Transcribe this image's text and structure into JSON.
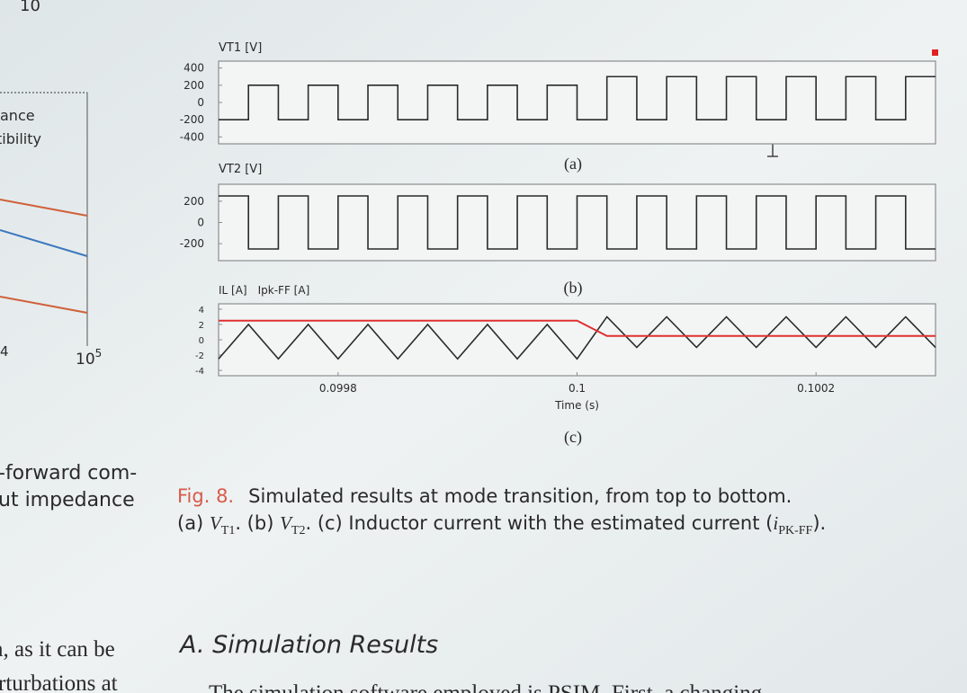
{
  "page": {
    "left_column": {
      "axis_fragment_top": "10",
      "legend_line_1": "ance",
      "legend_line_2": "tibility",
      "tick_fragment": "4",
      "tick_base": "10",
      "tick_exponent": "5",
      "text_lines": [
        "-forward com-",
        "ut impedance",
        "n, as it can be",
        "rturbations at"
      ]
    },
    "caption": {
      "label": "Fig. 8.",
      "line_1": "Simulated results at mode transition, from top to bottom.",
      "line_2": [
        "(a) ",
        "V",
        "T1",
        ". (b) ",
        "V",
        "T2",
        ". (c) Inductor current with the estimated current (",
        "i",
        "PK-FF",
        ")."
      ]
    },
    "section_heading": "A. Simulation Results",
    "body_text_fragment": "The simulation software employed is PSIM. First, a changing"
  },
  "chart_data": [
    {
      "type": "line",
      "title": "VT1 [V]",
      "label": "(a)",
      "xlim": [
        0.0997,
        0.1003
      ],
      "ylim": [
        -480,
        480
      ],
      "yticks": [
        400,
        200,
        0,
        -200,
        -400
      ],
      "series": [
        {
          "name": "VT1",
          "color": "#2a2a2a",
          "x": [
            0.0997,
            0.099725,
            0.099725,
            0.09975,
            0.09975,
            0.099775,
            0.099775,
            0.0998,
            0.0998,
            0.099825,
            0.099825,
            0.09985,
            0.09985,
            0.099875,
            0.099875,
            0.0999,
            0.0999,
            0.099925,
            0.099925,
            0.09995,
            0.09995,
            0.099975,
            0.099975,
            0.1,
            0.1,
            0.100025,
            0.100025,
            0.10005,
            0.10005,
            0.100075,
            0.100075,
            0.1001,
            0.1001,
            0.100125,
            0.100125,
            0.10015,
            0.10015,
            0.100175,
            0.100175,
            0.1002,
            0.1002,
            0.100225,
            0.100225,
            0.10025,
            0.10025,
            0.100275,
            0.100275,
            0.1003
          ],
          "values": [
            -200,
            -200,
            200,
            200,
            -200,
            -200,
            200,
            200,
            -200,
            -200,
            200,
            200,
            -200,
            -200,
            200,
            200,
            -200,
            -200,
            200,
            200,
            -200,
            -200,
            200,
            200,
            -200,
            -200,
            300,
            300,
            -200,
            -200,
            300,
            300,
            -200,
            -200,
            300,
            300,
            -200,
            -200,
            300,
            300,
            -200,
            -200,
            300,
            300,
            -200,
            -200,
            300,
            300
          ]
        }
      ]
    },
    {
      "type": "line",
      "title": "VT2 [V]",
      "label": "(b)",
      "xlim": [
        0.0997,
        0.1003
      ],
      "ylim": [
        -360,
        360
      ],
      "yticks": [
        200,
        0,
        -200
      ],
      "series": [
        {
          "name": "VT2",
          "color": "#2a2a2a",
          "x": [
            0.0997,
            0.099725,
            0.099725,
            0.09975,
            0.09975,
            0.099775,
            0.099775,
            0.0998,
            0.0998,
            0.099825,
            0.099825,
            0.09985,
            0.09985,
            0.099875,
            0.099875,
            0.0999,
            0.0999,
            0.099925,
            0.099925,
            0.09995,
            0.09995,
            0.099975,
            0.099975,
            0.1,
            0.1,
            0.100025,
            0.100025,
            0.10005,
            0.10005,
            0.100075,
            0.100075,
            0.1001,
            0.1001,
            0.100125,
            0.100125,
            0.10015,
            0.10015,
            0.100175,
            0.100175,
            0.1002,
            0.1002,
            0.100225,
            0.100225,
            0.10025,
            0.10025,
            0.100275,
            0.100275,
            0.1003
          ],
          "values": [
            250,
            250,
            -250,
            -250,
            250,
            250,
            -250,
            -250,
            250,
            250,
            -250,
            -250,
            250,
            250,
            -250,
            -250,
            250,
            250,
            -250,
            -250,
            250,
            250,
            -250,
            -250,
            250,
            250,
            -250,
            -250,
            250,
            250,
            -250,
            -250,
            250,
            250,
            -250,
            -250,
            250,
            250,
            -250,
            -250,
            250,
            250,
            -250,
            -250,
            250,
            250,
            -250,
            -250
          ]
        }
      ]
    },
    {
      "type": "line",
      "label": "(c)",
      "xlim": [
        0.0997,
        0.1003
      ],
      "ylim": [
        -4.7,
        4.7
      ],
      "yticks": [
        4,
        2,
        0,
        -2,
        -4
      ],
      "xticks": [
        0.0998,
        0.1,
        0.1002
      ],
      "xlabel": "Time (s)",
      "series": [
        {
          "name": "IL [A]",
          "color": "#2a2a2a",
          "x": [
            0.0997,
            0.099725,
            0.09975,
            0.099775,
            0.0998,
            0.099825,
            0.09985,
            0.099875,
            0.0999,
            0.099925,
            0.09995,
            0.099975,
            0.1,
            0.100025,
            0.10005,
            0.100075,
            0.1001,
            0.100125,
            0.10015,
            0.100175,
            0.1002,
            0.100225,
            0.10025,
            0.100275,
            0.1003
          ],
          "values": [
            -2.5,
            2,
            -2.5,
            2,
            -2.5,
            2,
            -2.5,
            2,
            -2.5,
            2,
            -2.5,
            2,
            -2.5,
            3,
            -1,
            3,
            -1,
            3,
            -1,
            3,
            -1,
            3,
            -1,
            3,
            -1
          ]
        },
        {
          "name": "Ipk-FF [A]",
          "color": "#e03030",
          "x": [
            0.0997,
            0.1,
            0.100025,
            0.1003
          ],
          "values": [
            2.5,
            2.5,
            0.5,
            0.5
          ]
        }
      ]
    }
  ]
}
